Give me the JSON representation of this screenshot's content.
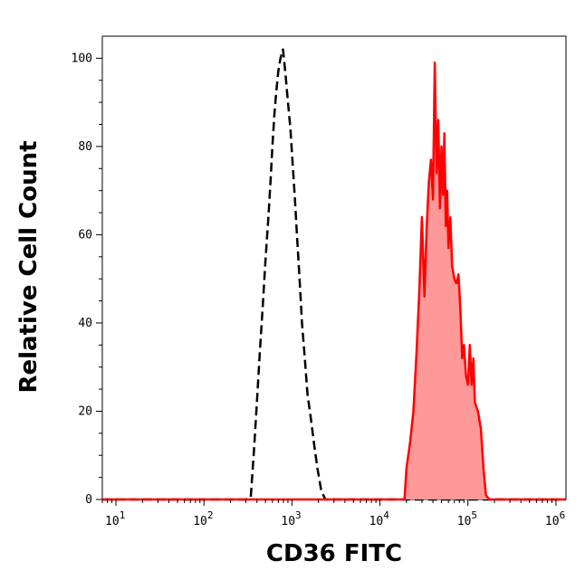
{
  "chart_data": {
    "type": "area",
    "title": "",
    "xlabel": "CD36 FITC",
    "ylabel": "Relative Cell Count",
    "x_scale": "log",
    "xlim": [
      7,
      1300000
    ],
    "ylim": [
      0,
      105
    ],
    "x_ticks": [
      {
        "value": 10,
        "base": "10",
        "exp": "1"
      },
      {
        "value": 100,
        "base": "10",
        "exp": "2"
      },
      {
        "value": 1000,
        "base": "10",
        "exp": "3"
      },
      {
        "value": 10000,
        "base": "10",
        "exp": "4"
      },
      {
        "value": 100000,
        "base": "10",
        "exp": "5"
      },
      {
        "value": 1000000,
        "base": "10",
        "exp": "6"
      }
    ],
    "y_ticks": [
      0,
      20,
      40,
      60,
      80,
      100
    ],
    "grid": false,
    "legend": "none",
    "series": [
      {
        "style": "dashed",
        "color": "#000000",
        "fill": "none",
        "points": [
          [
            7,
            0
          ],
          [
            300,
            0
          ],
          [
            340,
            0.5
          ],
          [
            370,
            11
          ],
          [
            400,
            22
          ],
          [
            430,
            33
          ],
          [
            470,
            45
          ],
          [
            500,
            54
          ],
          [
            540,
            64
          ],
          [
            570,
            72
          ],
          [
            600,
            80
          ],
          [
            630,
            87
          ],
          [
            660,
            92
          ],
          [
            700,
            97
          ],
          [
            740,
            100
          ],
          [
            790,
            102
          ],
          [
            840,
            97
          ],
          [
            900,
            90
          ],
          [
            960,
            84
          ],
          [
            1020,
            76
          ],
          [
            1080,
            68
          ],
          [
            1140,
            60
          ],
          [
            1220,
            50
          ],
          [
            1300,
            40
          ],
          [
            1400,
            32
          ],
          [
            1500,
            24
          ],
          [
            1650,
            18
          ],
          [
            1800,
            12
          ],
          [
            1950,
            7
          ],
          [
            2150,
            2
          ],
          [
            2400,
            0
          ],
          [
            1300000,
            0
          ]
        ]
      },
      {
        "style": "solid",
        "color": "#ff0000",
        "fill": "#ff9999",
        "points": [
          [
            7,
            0
          ],
          [
            19000,
            0
          ],
          [
            20000,
            7
          ],
          [
            22000,
            13
          ],
          [
            24000,
            20
          ],
          [
            26000,
            33
          ],
          [
            28000,
            47
          ],
          [
            30000,
            64
          ],
          [
            32000,
            46
          ],
          [
            34000,
            62
          ],
          [
            36000,
            72
          ],
          [
            38000,
            77
          ],
          [
            40000,
            68
          ],
          [
            42000,
            99
          ],
          [
            44000,
            74
          ],
          [
            46000,
            86
          ],
          [
            48000,
            66
          ],
          [
            50000,
            80
          ],
          [
            52000,
            69
          ],
          [
            54000,
            83
          ],
          [
            56000,
            62
          ],
          [
            58000,
            70
          ],
          [
            60000,
            57
          ],
          [
            63000,
            64
          ],
          [
            66000,
            53
          ],
          [
            70000,
            50
          ],
          [
            74000,
            49
          ],
          [
            78000,
            51
          ],
          [
            82000,
            43
          ],
          [
            86000,
            32
          ],
          [
            90000,
            35
          ],
          [
            95000,
            28
          ],
          [
            100000,
            26
          ],
          [
            105000,
            35
          ],
          [
            110000,
            26
          ],
          [
            115000,
            32
          ],
          [
            120000,
            22
          ],
          [
            130000,
            20
          ],
          [
            140000,
            16
          ],
          [
            150000,
            7
          ],
          [
            160000,
            1
          ],
          [
            175000,
            0
          ],
          [
            1300000,
            0
          ]
        ]
      }
    ]
  }
}
